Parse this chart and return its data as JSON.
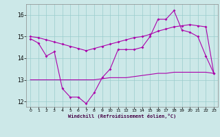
{
  "xlabel": "Windchill (Refroidissement éolien,°C)",
  "background_color": "#cce8e8",
  "grid_color": "#99cccc",
  "line_color": "#aa00aa",
  "xlim": [
    -0.5,
    23.5
  ],
  "ylim": [
    11.75,
    16.5
  ],
  "yticks": [
    12,
    13,
    14,
    15,
    16
  ],
  "xticks": [
    0,
    1,
    2,
    3,
    4,
    5,
    6,
    7,
    8,
    9,
    10,
    11,
    12,
    13,
    14,
    15,
    16,
    17,
    18,
    19,
    20,
    21,
    22,
    23
  ],
  "line1_x": [
    0,
    1,
    2,
    3,
    4,
    5,
    6,
    7,
    8,
    9,
    10,
    11,
    12,
    13,
    14,
    15,
    16,
    17,
    18,
    19,
    20,
    21,
    22,
    23
  ],
  "line1_y": [
    14.9,
    14.7,
    14.1,
    14.3,
    12.6,
    12.2,
    12.2,
    11.9,
    12.4,
    13.1,
    13.5,
    14.4,
    14.4,
    14.4,
    14.5,
    15.0,
    15.8,
    15.8,
    16.2,
    15.3,
    15.2,
    15.0,
    14.1,
    13.3
  ],
  "line2_x": [
    0,
    1,
    2,
    3,
    4,
    5,
    6,
    7,
    8,
    9,
    10,
    11,
    12,
    13,
    14,
    15,
    16,
    17,
    18,
    19,
    20,
    21,
    22,
    23
  ],
  "line2_y": [
    15.0,
    14.95,
    14.85,
    14.75,
    14.65,
    14.55,
    14.45,
    14.35,
    14.45,
    14.55,
    14.65,
    14.75,
    14.85,
    14.95,
    15.0,
    15.1,
    15.25,
    15.35,
    15.45,
    15.5,
    15.55,
    15.5,
    15.45,
    13.3
  ],
  "line3_x": [
    0,
    1,
    2,
    3,
    4,
    5,
    6,
    7,
    8,
    9,
    10,
    11,
    12,
    13,
    14,
    15,
    16,
    17,
    18,
    19,
    20,
    21,
    22,
    23
  ],
  "line3_y": [
    13.0,
    13.0,
    13.0,
    13.0,
    13.0,
    13.0,
    13.0,
    13.0,
    13.0,
    13.05,
    13.1,
    13.1,
    13.1,
    13.15,
    13.2,
    13.25,
    13.3,
    13.3,
    13.35,
    13.35,
    13.35,
    13.35,
    13.35,
    13.3
  ]
}
